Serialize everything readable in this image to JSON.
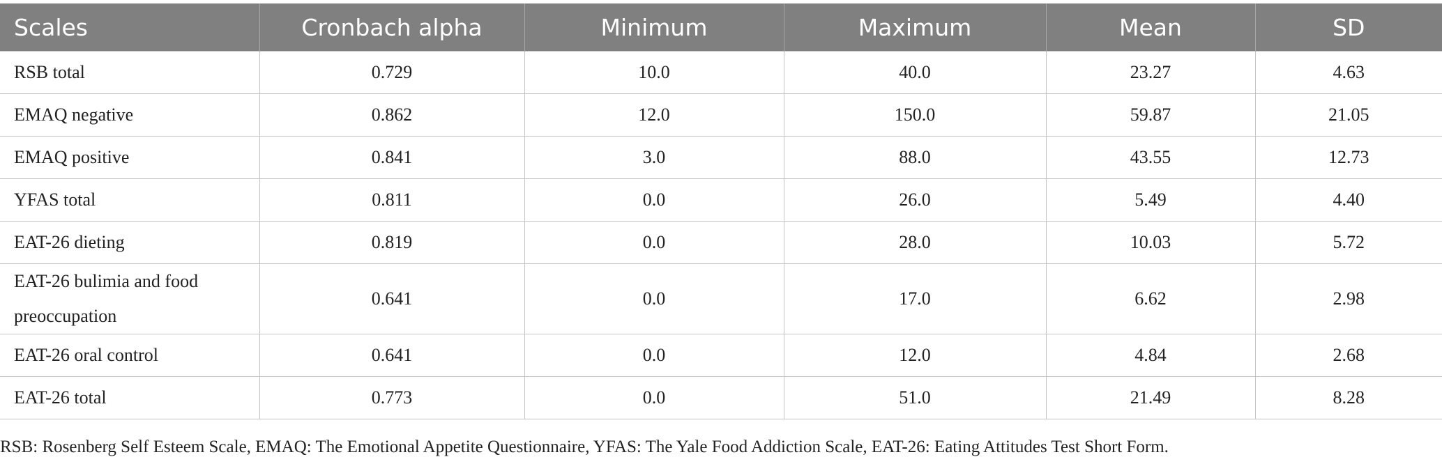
{
  "table": {
    "header": [
      "Scales",
      "Cronbach alpha",
      "Minimum",
      "Maximum",
      "Mean",
      "SD"
    ],
    "rows": [
      [
        "RSB total",
        "0.729",
        "10.0",
        "40.0",
        "23.27",
        "4.63"
      ],
      [
        "EMAQ negative",
        "0.862",
        "12.0",
        "150.0",
        "59.87",
        "21.05"
      ],
      [
        "EMAQ positive",
        "0.841",
        "3.0",
        "88.0",
        "43.55",
        "12.73"
      ],
      [
        "YFAS total",
        "0.811",
        "0.0",
        "26.0",
        "5.49",
        "4.40"
      ],
      [
        "EAT-26 dieting",
        "0.819",
        "0.0",
        "28.0",
        "10.03",
        "5.72"
      ],
      [
        "EAT-26 bulimia and food preoccupation",
        "0.641",
        "0.0",
        "17.0",
        "6.62",
        "2.98"
      ],
      [
        "EAT-26 oral control",
        "0.641",
        "0.0",
        "12.0",
        "4.84",
        "2.68"
      ],
      [
        "EAT-26 total",
        "0.773",
        "0.0",
        "51.0",
        "21.49",
        "8.28"
      ]
    ],
    "footnote": "RSB: Rosenberg Self Esteem Scale, EMAQ: The Emotional Appetite Questionnaire, YFAS: The Yale Food Addiction Scale, EAT-26: Eating Attitudes Test Short Form."
  }
}
